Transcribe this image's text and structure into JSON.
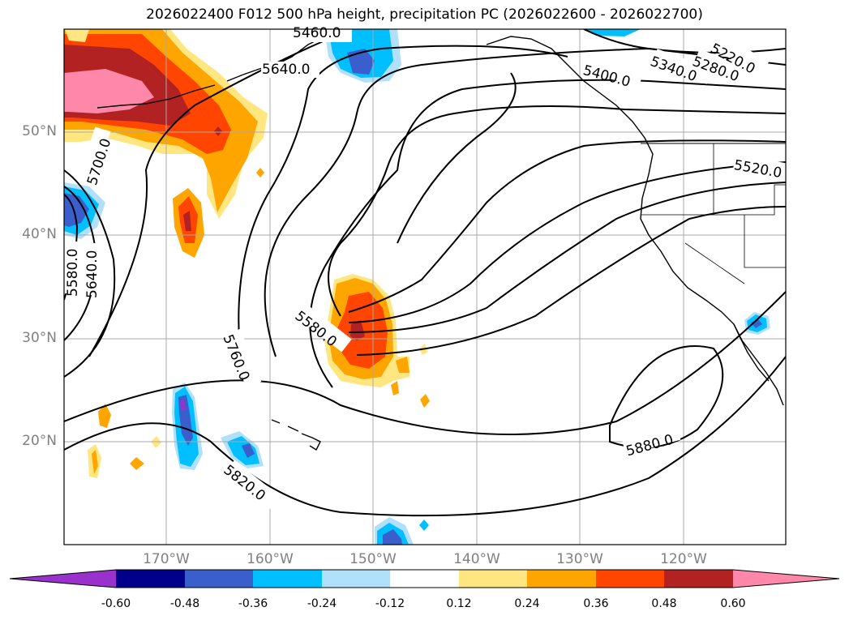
{
  "title": "2026022400 F012 500 hPa height, precipitation PC (2026022600 - 2026022700)",
  "map": {
    "lat_labels": [
      "50°N",
      "40°N",
      "30°N",
      "20°N"
    ],
    "lon_labels": [
      "170°W",
      "160°W",
      "150°W",
      "140°W",
      "130°W",
      "120°W"
    ],
    "contour_labels": [
      "5460.0",
      "5640.0",
      "5400.0",
      "5340.0",
      "5280.0",
      "5220.0",
      "5700.0",
      "5520.0",
      "5580.0",
      "5640.0",
      "5580.0",
      "5760.0",
      "5880.0",
      "5820.0"
    ]
  },
  "colorbar": {
    "ticks": [
      "-0.60",
      "-0.48",
      "-0.36",
      "-0.24",
      "-0.12",
      "0.12",
      "0.24",
      "0.36",
      "0.48",
      "0.60"
    ],
    "colors": [
      "#9932cc",
      "#00008b",
      "#3a5fcd",
      "#00bfff",
      "#b0e0fa",
      "#ffffff",
      "#ffe680",
      "#ffa500",
      "#ff4500",
      "#b22222",
      "#ff88aa"
    ]
  },
  "palette": {
    "pink": "#ff88aa",
    "darkred": "#b22222",
    "orangered": "#ff4500",
    "orange": "#ffa500",
    "yellow": "#ffe680",
    "lightblue": "#b0e0fa",
    "skyblue": "#00bfff",
    "blue": "#3a5fcd",
    "navy": "#00008b",
    "purple": "#9932cc"
  }
}
